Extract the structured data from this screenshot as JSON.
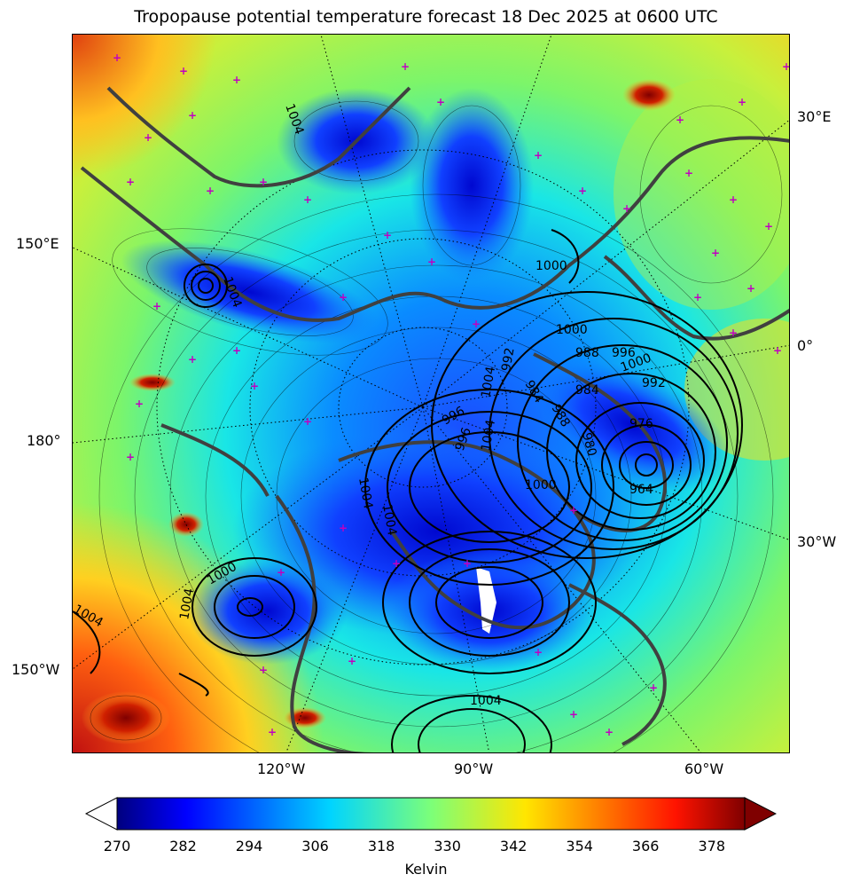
{
  "title": "Tropopause potential temperature forecast 18 Dec 2025 at 0600 UTC",
  "longitude_labels": {
    "right": [
      "30°E",
      "0°",
      "30°W"
    ],
    "left": [
      "150°E",
      "180°",
      "150°W"
    ],
    "bottom": [
      "120°W",
      "90°W",
      "60°W"
    ]
  },
  "colorbar": {
    "unit_label": "Kelvin",
    "ticks": [
      "270",
      "282",
      "294",
      "306",
      "318",
      "330",
      "342",
      "354",
      "366",
      "378"
    ],
    "min": 270,
    "max": 384,
    "extend": "both",
    "colormap": "jet"
  },
  "isobar_labels": [
    "1004",
    "1004",
    "1000",
    "1004",
    "1004",
    "1000",
    "1004",
    "1004",
    "1000",
    "996",
    "988",
    "984",
    "992",
    "996",
    "976",
    "980",
    "964",
    "988",
    "984",
    "992",
    "996",
    "1000",
    "1004",
    "1004",
    "1000",
    "1004"
  ],
  "overlays": {
    "surface_pressure_contours": "black",
    "theta_contours": "thin black",
    "coastlines": "dark gray",
    "graticule": "dotted black",
    "station_markers": "magenta plus"
  }
}
